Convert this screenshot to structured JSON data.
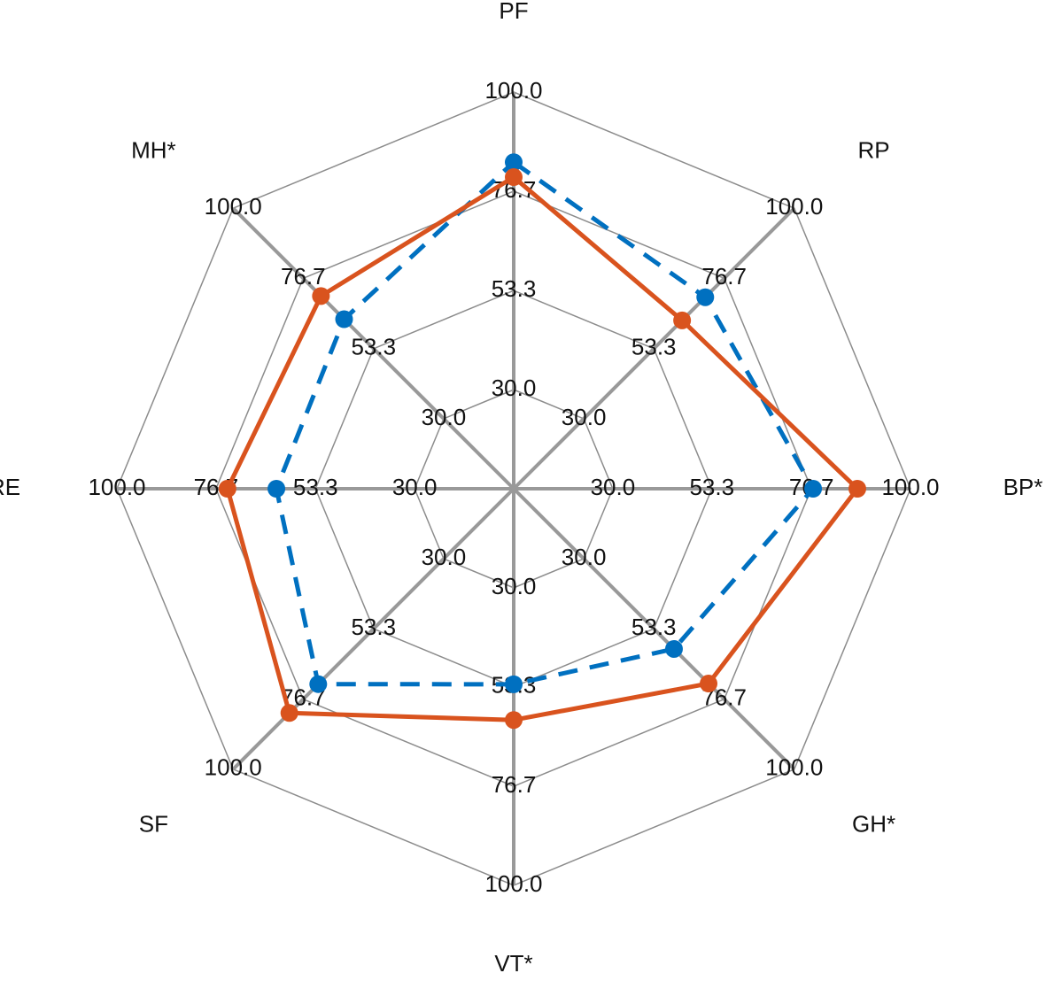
{
  "chart_data": {
    "type": "radar",
    "categories": [
      "PF",
      "RP",
      "BP*",
      "GH*",
      "VT*",
      "SF",
      "RE",
      "MH*"
    ],
    "series": [
      {
        "color": "#0070c0",
        "line_style": "dashed",
        "values": [
          83.5,
          70.4,
          77.1,
          60.0,
          52.7,
          71.7,
          62.5,
          63.1
        ]
      },
      {
        "color": "#d9531e",
        "line_style": "solid",
        "values": [
          80.0,
          62.7,
          87.5,
          71.5,
          61.1,
          81.3,
          74.0,
          70.8
        ]
      }
    ],
    "ylim": [
      6.7,
      100
    ],
    "yticks": [
      {
        "value": 30,
        "label": "30.0"
      },
      53.3,
      76.7,
      {
        "value": 100,
        "label": "100.0"
      }
    ],
    "grid": true
  }
}
